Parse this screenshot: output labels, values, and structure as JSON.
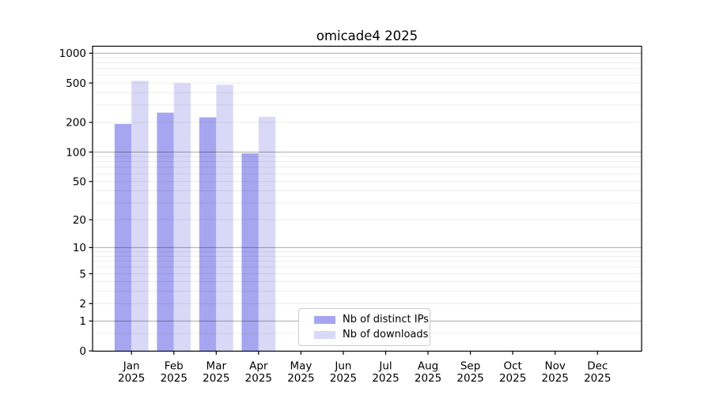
{
  "chart_data": {
    "type": "bar",
    "title": "omicade4 2025",
    "year_label": "2025",
    "categories": [
      "Jan",
      "Feb",
      "Mar",
      "Apr",
      "May",
      "Jun",
      "Jul",
      "Aug",
      "Sep",
      "Oct",
      "Nov",
      "Dec"
    ],
    "series": [
      {
        "name": "Nb of distinct IPs",
        "color": "#a6a6f0",
        "values": [
          193,
          251,
          225,
          97,
          null,
          null,
          null,
          null,
          null,
          null,
          null,
          null
        ]
      },
      {
        "name": "Nb of downloads",
        "color": "#d9d9f7",
        "values": [
          526,
          498,
          480,
          228,
          null,
          null,
          null,
          null,
          null,
          null,
          null,
          null
        ]
      }
    ],
    "yscale": "log10(1+x)",
    "yticks": [
      0,
      1,
      2,
      5,
      10,
      20,
      50,
      100,
      200,
      500,
      1000
    ],
    "ylim": [
      0,
      1160
    ],
    "xlabel": "",
    "ylabel": "",
    "grid": "horizontal, major and minor",
    "legend_position": "lower center"
  },
  "colors": {
    "background": "#ffffff",
    "bar_ips": "#a6a6f0",
    "bar_downloads": "#d9d9f7",
    "major_grid": "#a8a8a8",
    "minor_grid": "#ececec",
    "axis": "#000000",
    "legend_border": "#cbcbcb",
    "text": "#000000"
  }
}
